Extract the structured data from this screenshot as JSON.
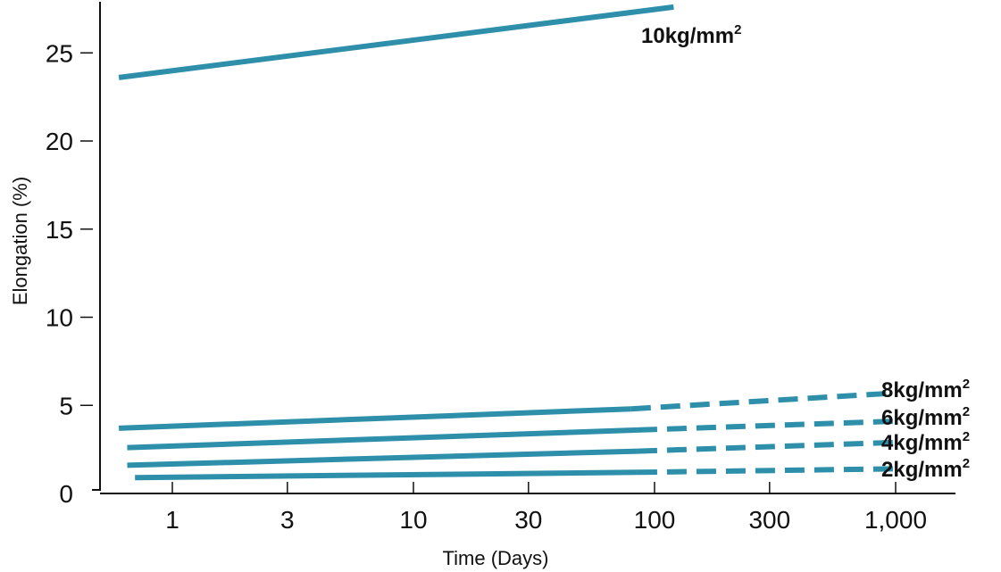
{
  "chart_data": {
    "type": "line",
    "title": "",
    "xlabel": "Time (Days)",
    "ylabel": "Elongation (%)",
    "xscale": "log",
    "xlim": [
      0.5,
      1800
    ],
    "ylim": [
      0,
      28
    ],
    "x_ticks": [
      {
        "value": 1,
        "label": "1"
      },
      {
        "value": 3,
        "label": "3"
      },
      {
        "value": 10,
        "label": "10"
      },
      {
        "value": 30,
        "label": "30"
      },
      {
        "value": 100,
        "label": "100"
      },
      {
        "value": 300,
        "label": "300"
      },
      {
        "value": 1000,
        "label": "1,000"
      }
    ],
    "y_ticks": [
      {
        "value": 0,
        "label": "0"
      },
      {
        "value": 5,
        "label": "5"
      },
      {
        "value": 10,
        "label": "10"
      },
      {
        "value": 15,
        "label": "15"
      },
      {
        "value": 20,
        "label": "20"
      },
      {
        "value": 25,
        "label": "25"
      }
    ],
    "grid": false,
    "line_color": "#2e8faa",
    "series": [
      {
        "name": "10kg/mm",
        "unit_sup": "2",
        "solid": [
          [
            0.6,
            23.6
          ],
          [
            120,
            27.6
          ]
        ],
        "dashed": []
      },
      {
        "name": "8kg/mm",
        "unit_sup": "2",
        "solid": [
          [
            0.6,
            3.7
          ],
          [
            80,
            4.8
          ]
        ],
        "dashed": [
          [
            80,
            4.8
          ],
          [
            1000,
            5.7
          ]
        ]
      },
      {
        "name": "6kg/mm",
        "unit_sup": "2",
        "solid": [
          [
            0.65,
            2.6
          ],
          [
            85,
            3.6
          ]
        ],
        "dashed": [
          [
            85,
            3.6
          ],
          [
            1000,
            4.1
          ]
        ]
      },
      {
        "name": "4kg/mm",
        "unit_sup": "2",
        "solid": [
          [
            0.65,
            1.6
          ],
          [
            85,
            2.4
          ]
        ],
        "dashed": [
          [
            85,
            2.4
          ],
          [
            1000,
            2.9
          ]
        ]
      },
      {
        "name": "2kg/mm",
        "unit_sup": "2",
        "solid": [
          [
            0.7,
            0.9
          ],
          [
            85,
            1.2
          ]
        ],
        "dashed": [
          [
            85,
            1.2
          ],
          [
            1000,
            1.4
          ]
        ]
      }
    ]
  }
}
